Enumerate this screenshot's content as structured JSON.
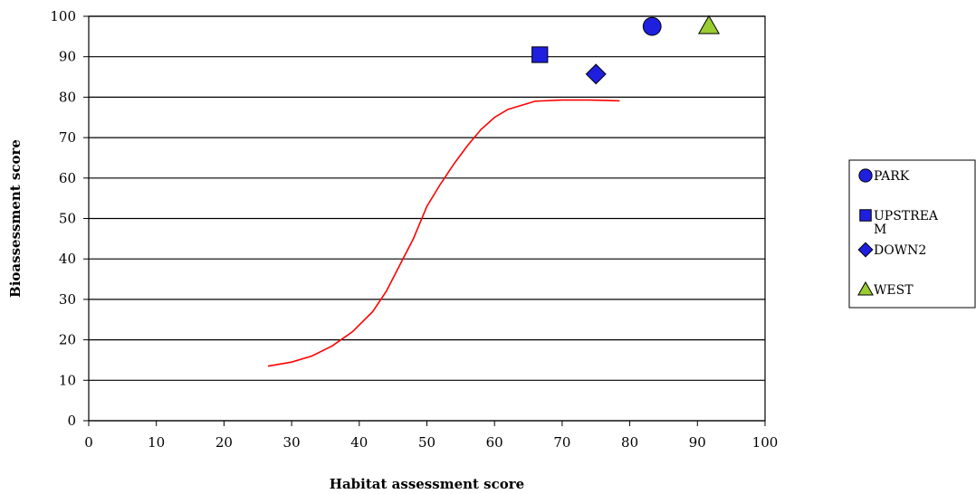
{
  "chart_data": {
    "type": "scatter",
    "title": "",
    "xlabel": "Habitat assessment score",
    "ylabel": "Bioassessment score",
    "xlim": [
      0,
      100
    ],
    "ylim": [
      0,
      100
    ],
    "x_ticks": [
      "0",
      "10",
      "20",
      "30",
      "40",
      "50",
      "60",
      "70",
      "80",
      "90",
      "100"
    ],
    "y_ticks": [
      "0",
      "10",
      "20",
      "30",
      "40",
      "50",
      "60",
      "70",
      "80",
      "90",
      "100"
    ],
    "grid": "horizontal",
    "legend_position": "right",
    "series": [
      {
        "name": "PARK",
        "marker": "circle",
        "color": "#1f1fe0",
        "points": [
          [
            83.3,
            97.5
          ]
        ]
      },
      {
        "name": "UPSTREA M",
        "marker": "square",
        "color": "#1f1fe0",
        "points": [
          [
            66.7,
            90.5
          ]
        ]
      },
      {
        "name": "DOWN2",
        "marker": "diamond",
        "color": "#1f1fe0",
        "points": [
          [
            75.0,
            85.7
          ]
        ]
      },
      {
        "name": "WEST",
        "marker": "triangle",
        "color": "#9acd32",
        "points": [
          [
            91.7,
            97.6
          ]
        ]
      }
    ],
    "curve": {
      "color": "#ff0000",
      "points": [
        [
          26.5,
          13.5
        ],
        [
          30,
          14.5
        ],
        [
          33,
          16
        ],
        [
          36,
          18.5
        ],
        [
          39,
          22
        ],
        [
          42,
          27
        ],
        [
          44,
          32
        ],
        [
          46,
          38.5
        ],
        [
          48,
          45
        ],
        [
          50,
          53
        ],
        [
          52,
          58.5
        ],
        [
          54,
          63.5
        ],
        [
          56,
          68
        ],
        [
          58,
          72
        ],
        [
          60,
          75
        ],
        [
          62,
          77
        ],
        [
          64,
          78
        ],
        [
          66,
          79
        ],
        [
          70,
          79.3
        ],
        [
          74,
          79.3
        ],
        [
          78.5,
          79.1
        ]
      ]
    }
  }
}
